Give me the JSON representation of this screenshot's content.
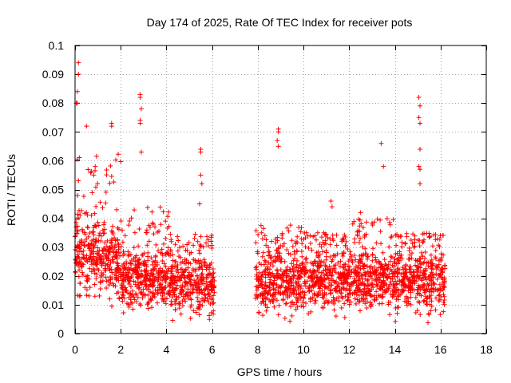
{
  "chart_data": {
    "type": "scatter",
    "title": "Day 174 of 2025, Rate Of TEC Index for receiver pots",
    "xlabel": "GPS time / hours",
    "ylabel": "ROTI / TECUs",
    "xlim": [
      0,
      18
    ],
    "ylim": [
      0,
      0.1
    ],
    "x_ticks": [
      "0",
      "2",
      "4",
      "6",
      "8",
      "10",
      "12",
      "14",
      "16",
      "18"
    ],
    "y_ticks": [
      "0",
      "0.01",
      "0.02",
      "0.03",
      "0.04",
      "0.05",
      "0.06",
      "0.07",
      "0.08",
      "0.09",
      "0.1"
    ],
    "grid": true,
    "marker": "+",
    "color": "#ff0000",
    "data_gap_hours": [
      6.1,
      7.9
    ],
    "notable_points": [
      {
        "x": 0.15,
        "y": 0.094
      },
      {
        "x": 0.15,
        "y": 0.09
      },
      {
        "x": 0.1,
        "y": 0.084
      },
      {
        "x": 0.05,
        "y": 0.08
      },
      {
        "x": 0.1,
        "y": 0.08
      },
      {
        "x": 0.5,
        "y": 0.072
      },
      {
        "x": 1.6,
        "y": 0.073
      },
      {
        "x": 1.6,
        "y": 0.072
      },
      {
        "x": 2.85,
        "y": 0.083
      },
      {
        "x": 2.85,
        "y": 0.082
      },
      {
        "x": 2.9,
        "y": 0.078
      },
      {
        "x": 2.85,
        "y": 0.074
      },
      {
        "x": 2.85,
        "y": 0.073
      },
      {
        "x": 2.9,
        "y": 0.063
      },
      {
        "x": 5.5,
        "y": 0.064
      },
      {
        "x": 5.5,
        "y": 0.063
      },
      {
        "x": 5.5,
        "y": 0.055
      },
      {
        "x": 5.55,
        "y": 0.052
      },
      {
        "x": 5.45,
        "y": 0.045
      },
      {
        "x": 8.9,
        "y": 0.071
      },
      {
        "x": 8.9,
        "y": 0.07
      },
      {
        "x": 8.85,
        "y": 0.067
      },
      {
        "x": 8.9,
        "y": 0.065
      },
      {
        "x": 13.4,
        "y": 0.066
      },
      {
        "x": 13.5,
        "y": 0.058
      },
      {
        "x": 15.05,
        "y": 0.082
      },
      {
        "x": 15.1,
        "y": 0.079
      },
      {
        "x": 15.05,
        "y": 0.075
      },
      {
        "x": 15.1,
        "y": 0.073
      },
      {
        "x": 15.1,
        "y": 0.064
      },
      {
        "x": 15.05,
        "y": 0.058
      },
      {
        "x": 15.1,
        "y": 0.057
      },
      {
        "x": 15.1,
        "y": 0.052
      },
      {
        "x": 11.2,
        "y": 0.046
      },
      {
        "x": 11.25,
        "y": 0.044
      },
      {
        "x": 12.5,
        "y": 0.042
      }
    ],
    "bulk_profile": [
      {
        "from": 0.0,
        "to": 1.0,
        "low": 0.006,
        "typical_high": 0.045,
        "max": 0.062
      },
      {
        "from": 1.0,
        "to": 2.0,
        "low": 0.006,
        "typical_high": 0.04,
        "max": 0.065
      },
      {
        "from": 2.0,
        "to": 3.0,
        "low": 0.004,
        "typical_high": 0.03,
        "max": 0.045
      },
      {
        "from": 3.0,
        "to": 4.2,
        "low": 0.005,
        "typical_high": 0.03,
        "max": 0.045
      },
      {
        "from": 4.2,
        "to": 6.1,
        "low": 0.003,
        "typical_high": 0.028,
        "max": 0.035
      },
      {
        "from": 7.9,
        "to": 10.0,
        "low": 0.003,
        "typical_high": 0.03,
        "max": 0.038
      },
      {
        "from": 10.0,
        "to": 12.0,
        "low": 0.004,
        "typical_high": 0.03,
        "max": 0.035
      },
      {
        "from": 12.0,
        "to": 14.0,
        "low": 0.004,
        "typical_high": 0.03,
        "max": 0.04
      },
      {
        "from": 14.0,
        "to": 16.2,
        "low": 0.003,
        "typical_high": 0.03,
        "max": 0.035
      }
    ],
    "bulk_point_count": 2600
  }
}
